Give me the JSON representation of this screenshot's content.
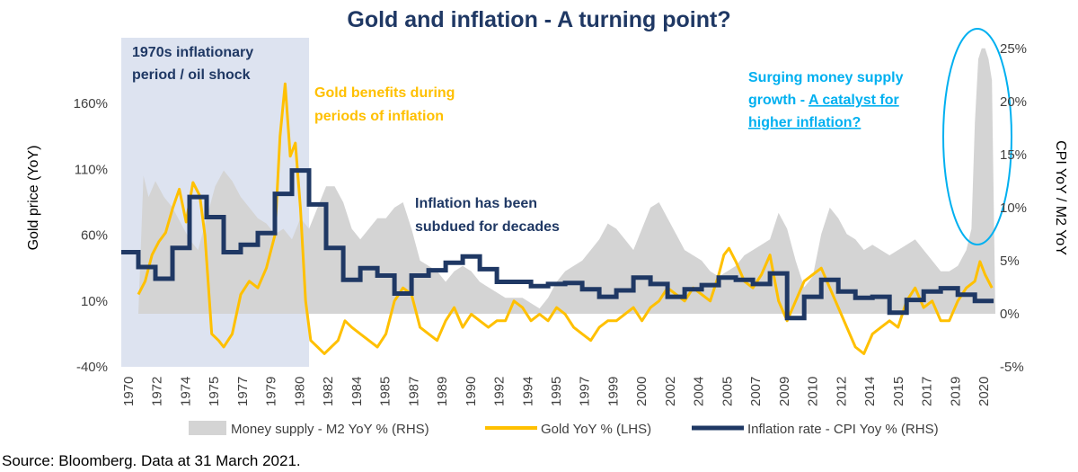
{
  "chart_data": {
    "type": "line",
    "title": "Gold and inflation - A turning point?",
    "ylabel_left": "Gold price (YoY)",
    "ylabel_right": "CPI YoY / M2 YoY",
    "ylim_left": [
      -40,
      210
    ],
    "ylim_right": [
      -5,
      26
    ],
    "yticks_left": [
      -40,
      10,
      60,
      110,
      160
    ],
    "yticks_left_labels": [
      "-40%",
      "10%",
      "60%",
      "110%",
      "160%"
    ],
    "yticks_right": [
      -5,
      0,
      5,
      10,
      15,
      20,
      25
    ],
    "yticks_right_labels": [
      "-5%",
      "0%",
      "5%",
      "10%",
      "15%",
      "20%",
      "25%"
    ],
    "xlim": [
      1970,
      2021.2
    ],
    "xtick_labels": [
      "1970",
      "1972",
      "1974",
      "1975",
      "1977",
      "1979",
      "1980",
      "1982",
      "1984",
      "1985",
      "1987",
      "1989",
      "1990",
      "1992",
      "1994",
      "1995",
      "1997",
      "1999",
      "2000",
      "2002",
      "2004",
      "2005",
      "2007",
      "2009",
      "2010",
      "2012",
      "2014",
      "2015",
      "2017",
      "2019",
      "2020"
    ],
    "shaded_period": [
      1970,
      1981
    ],
    "series": [
      {
        "name": "Money supply - M2 YoY % (RHS)",
        "kind": "area",
        "axis": "right",
        "color": "#d4d4d4",
        "x": [
          1971,
          1971.3,
          1971.6,
          1972,
          1972.5,
          1973,
          1973.5,
          1974,
          1974.5,
          1975,
          1975.5,
          1976,
          1976.5,
          1977,
          1977.5,
          1978,
          1978.5,
          1979,
          1979.5,
          1980,
          1980.5,
          1981,
          1981.5,
          1982,
          1982.5,
          1983,
          1983.5,
          1984,
          1984.5,
          1985,
          1985.5,
          1986,
          1986.5,
          1987,
          1987.5,
          1988,
          1988.5,
          1989,
          1989.5,
          1990,
          1990.5,
          1991,
          1991.5,
          1992,
          1992.5,
          1993,
          1993.5,
          1994,
          1994.5,
          1995,
          1995.5,
          1996,
          1996.5,
          1997,
          1997.5,
          1998,
          1998.5,
          1999,
          1999.5,
          2000,
          2000.5,
          2001,
          2001.5,
          2002,
          2002.5,
          2003,
          2003.5,
          2004,
          2004.5,
          2005,
          2005.5,
          2006,
          2006.5,
          2007,
          2007.5,
          2008,
          2008.5,
          2009,
          2009.5,
          2010,
          2010.5,
          2011,
          2011.5,
          2012,
          2012.5,
          2013,
          2013.5,
          2014,
          2014.5,
          2015,
          2015.5,
          2016,
          2016.5,
          2017,
          2017.5,
          2018,
          2018.5,
          2019,
          2019.5,
          2019.8,
          2020,
          2020.2,
          2020.4,
          2020.6,
          2020.8,
          2021,
          2021.2
        ],
        "values": [
          0,
          13,
          11,
          12.5,
          11,
          10,
          8.5,
          7,
          6,
          9,
          12,
          13.5,
          12.5,
          11,
          10,
          9,
          8.5,
          7.5,
          8,
          7,
          9,
          8,
          10,
          12,
          12,
          10.5,
          8,
          7,
          8,
          9,
          9,
          10,
          10.5,
          8,
          5,
          4.5,
          4,
          3,
          4,
          4.5,
          4,
          3,
          2.5,
          2,
          1.5,
          1.5,
          1.5,
          1,
          0.5,
          1.5,
          3,
          4,
          4.5,
          5,
          6,
          7,
          8.5,
          8,
          7,
          6,
          8,
          10,
          10.5,
          9,
          7.5,
          6,
          5.5,
          5,
          4,
          3.5,
          4,
          4.5,
          5.5,
          6,
          6.5,
          7,
          9.5,
          8,
          5,
          2.5,
          3.5,
          7.5,
          10,
          9,
          7.5,
          7,
          6,
          6.5,
          6,
          5.5,
          6,
          6.5,
          7,
          6,
          5,
          4,
          4,
          4.5,
          6,
          8,
          18,
          24,
          25,
          25,
          24,
          22,
          0
        ]
      },
      {
        "name": "Gold YoY % (LHS)",
        "kind": "line",
        "axis": "left",
        "color": "#ffc000",
        "x": [
          1971,
          1971.4,
          1971.8,
          1972.2,
          1972.6,
          1973,
          1973.4,
          1973.8,
          1974.2,
          1974.6,
          1974.9,
          1975.3,
          1975.7,
          1976,
          1976.5,
          1977,
          1977.5,
          1978,
          1978.5,
          1979,
          1979.3,
          1979.6,
          1979.9,
          1980.2,
          1980.5,
          1980.8,
          1981.1,
          1981.5,
          1981.9,
          1982.3,
          1982.7,
          1983.1,
          1983.5,
          1984,
          1984.5,
          1985,
          1985.5,
          1986,
          1986.5,
          1987,
          1987.5,
          1988,
          1988.5,
          1989,
          1989.5,
          1990,
          1990.5,
          1991,
          1991.5,
          1992,
          1992.5,
          1993,
          1993.5,
          1994,
          1994.5,
          1995,
          1995.5,
          1996,
          1996.5,
          1997,
          1997.5,
          1998,
          1998.5,
          1999,
          1999.5,
          2000,
          2000.5,
          2001,
          2001.5,
          2002,
          2002.5,
          2003,
          2003.5,
          2004,
          2004.5,
          2005,
          2005.3,
          2005.6,
          2006,
          2006.5,
          2007,
          2007.5,
          2008,
          2008.5,
          2009,
          2009.5,
          2010,
          2010.5,
          2011,
          2011.5,
          2012,
          2012.5,
          2013,
          2013.5,
          2014,
          2014.5,
          2015,
          2015.5,
          2016,
          2016.5,
          2017,
          2017.5,
          2018,
          2018.5,
          2019,
          2019.5,
          2020,
          2020.3,
          2020.6,
          2021
        ],
        "values": [
          15,
          25,
          45,
          55,
          62,
          80,
          95,
          70,
          100,
          90,
          60,
          -15,
          -20,
          -25,
          -15,
          15,
          25,
          20,
          35,
          60,
          135,
          175,
          120,
          130,
          80,
          10,
          -20,
          -25,
          -30,
          -25,
          -20,
          -5,
          -10,
          -15,
          -20,
          -25,
          -15,
          10,
          20,
          15,
          -10,
          -15,
          -20,
          -5,
          5,
          -10,
          0,
          -5,
          -10,
          -5,
          -5,
          10,
          5,
          -5,
          0,
          -5,
          5,
          0,
          -10,
          -15,
          -20,
          -10,
          -5,
          -5,
          0,
          5,
          -5,
          5,
          10,
          20,
          15,
          10,
          20,
          15,
          10,
          30,
          45,
          50,
          40,
          25,
          20,
          30,
          45,
          10,
          -5,
          10,
          25,
          30,
          35,
          20,
          5,
          -10,
          -25,
          -30,
          -15,
          -10,
          -5,
          -10,
          10,
          20,
          5,
          10,
          -5,
          -5,
          10,
          20,
          25,
          40,
          30,
          20
        ]
      },
      {
        "name": "Inflation rate - CPI Yoy % (RHS)",
        "kind": "line",
        "axis": "right",
        "color": "#1f3864",
        "steps": [
          [
            1970,
            5.8
          ],
          [
            1971,
            4.4
          ],
          [
            1972,
            3.3
          ],
          [
            1973,
            6.2
          ],
          [
            1974,
            11.0
          ],
          [
            1975,
            9.1
          ],
          [
            1976,
            5.8
          ],
          [
            1977,
            6.5
          ],
          [
            1978,
            7.6
          ],
          [
            1979,
            11.3
          ],
          [
            1980,
            13.5
          ],
          [
            1981,
            10.3
          ],
          [
            1982,
            6.2
          ],
          [
            1983,
            3.2
          ],
          [
            1984,
            4.3
          ],
          [
            1985,
            3.6
          ],
          [
            1986,
            1.9
          ],
          [
            1987,
            3.6
          ],
          [
            1988,
            4.1
          ],
          [
            1989,
            4.8
          ],
          [
            1990,
            5.4
          ],
          [
            1991,
            4.2
          ],
          [
            1992,
            3.0
          ],
          [
            1993,
            3.0
          ],
          [
            1994,
            2.6
          ],
          [
            1995,
            2.8
          ],
          [
            1996,
            2.9
          ],
          [
            1997,
            2.3
          ],
          [
            1998,
            1.6
          ],
          [
            1999,
            2.2
          ],
          [
            2000,
            3.4
          ],
          [
            2001,
            2.8
          ],
          [
            2002,
            1.6
          ],
          [
            2003,
            2.3
          ],
          [
            2004,
            2.7
          ],
          [
            2005,
            3.4
          ],
          [
            2006,
            3.2
          ],
          [
            2007,
            2.8
          ],
          [
            2008,
            3.8
          ],
          [
            2009,
            -0.4
          ],
          [
            2010,
            1.6
          ],
          [
            2011,
            3.2
          ],
          [
            2012,
            2.1
          ],
          [
            2013,
            1.5
          ],
          [
            2014,
            1.6
          ],
          [
            2015,
            0.1
          ],
          [
            2016,
            1.3
          ],
          [
            2017,
            2.1
          ],
          [
            2018,
            2.4
          ],
          [
            2019,
            1.8
          ],
          [
            2020,
            1.2
          ]
        ],
        "end_x": 2021.1
      }
    ]
  },
  "annotations": {
    "period_label": "1970s inflationary\nperiod / oil shock",
    "gold_benefits": "Gold benefits during\nperiods of inflation",
    "inflation_subdued": "Inflation has been\nsubdued for decades",
    "money_supply_plain": "Surging money supply\ngrowth - ",
    "money_supply_link": "A catalyst for\nhigher inflation?"
  },
  "colors": {
    "title": "#1f3864",
    "gold": "#ffc000",
    "cpi": "#1f3864",
    "m2": "#d4d4d4",
    "shade": "#dde3f0",
    "highlight": "#00b0f0"
  },
  "legend": [
    {
      "label": "Money supply - M2 YoY % (RHS)",
      "style": "area"
    },
    {
      "label": "Gold YoY % (LHS)",
      "style": "gold"
    },
    {
      "label": "Inflation rate - CPI Yoy % (RHS)",
      "style": "cpi"
    }
  ],
  "source": "Source: Bloomberg. Data at 31 March 2021."
}
